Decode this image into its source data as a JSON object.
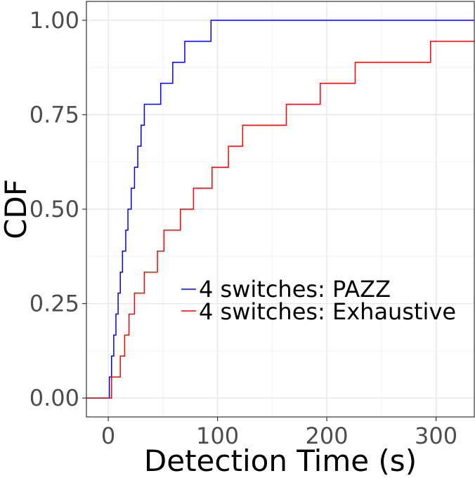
{
  "chart_data": {
    "type": "line",
    "step": true,
    "xlabel": "Detection Time (s)",
    "ylabel": "CDF",
    "xlim": [
      -20,
      335
    ],
    "ylim": [
      -0.05,
      1.05
    ],
    "x_ticks": [
      0,
      100,
      200,
      300
    ],
    "x_tick_labels": [
      "0",
      "100",
      "200",
      "300"
    ],
    "y_ticks": [
      0,
      0.25,
      0.5,
      0.75,
      1.0
    ],
    "y_tick_labels": [
      "0.00",
      "0.25",
      "0.50",
      "0.75",
      "1.00"
    ],
    "grid": true,
    "legend_position": "inside-right",
    "series": [
      {
        "name": "4 switches: PAZZ",
        "color": "#0000ff",
        "x": [
          1,
          3,
          5,
          7,
          9,
          11,
          13,
          16,
          18,
          21,
          24,
          27,
          30,
          33,
          36,
          48,
          59,
          70,
          94
        ],
        "y": [
          0.0556,
          0.1111,
          0.1667,
          0.2222,
          0.2778,
          0.3333,
          0.3889,
          0.4444,
          0.5,
          0.5556,
          0.6111,
          0.6667,
          0.7222,
          0.7778,
          0.7778,
          0.8333,
          0.8889,
          0.9444,
          1.0
        ]
      },
      {
        "name": "4 switches: Exhaustive",
        "color": "#ff0000",
        "x": [
          3,
          11,
          15,
          19,
          24,
          33,
          45,
          51,
          66,
          78,
          95,
          110,
          123,
          163,
          194,
          226,
          295
        ],
        "y": [
          0.0556,
          0.1111,
          0.1667,
          0.2222,
          0.2778,
          0.3333,
          0.3889,
          0.4444,
          0.5,
          0.5556,
          0.6111,
          0.6667,
          0.7222,
          0.7778,
          0.8333,
          0.8889,
          0.9444
        ]
      }
    ]
  }
}
